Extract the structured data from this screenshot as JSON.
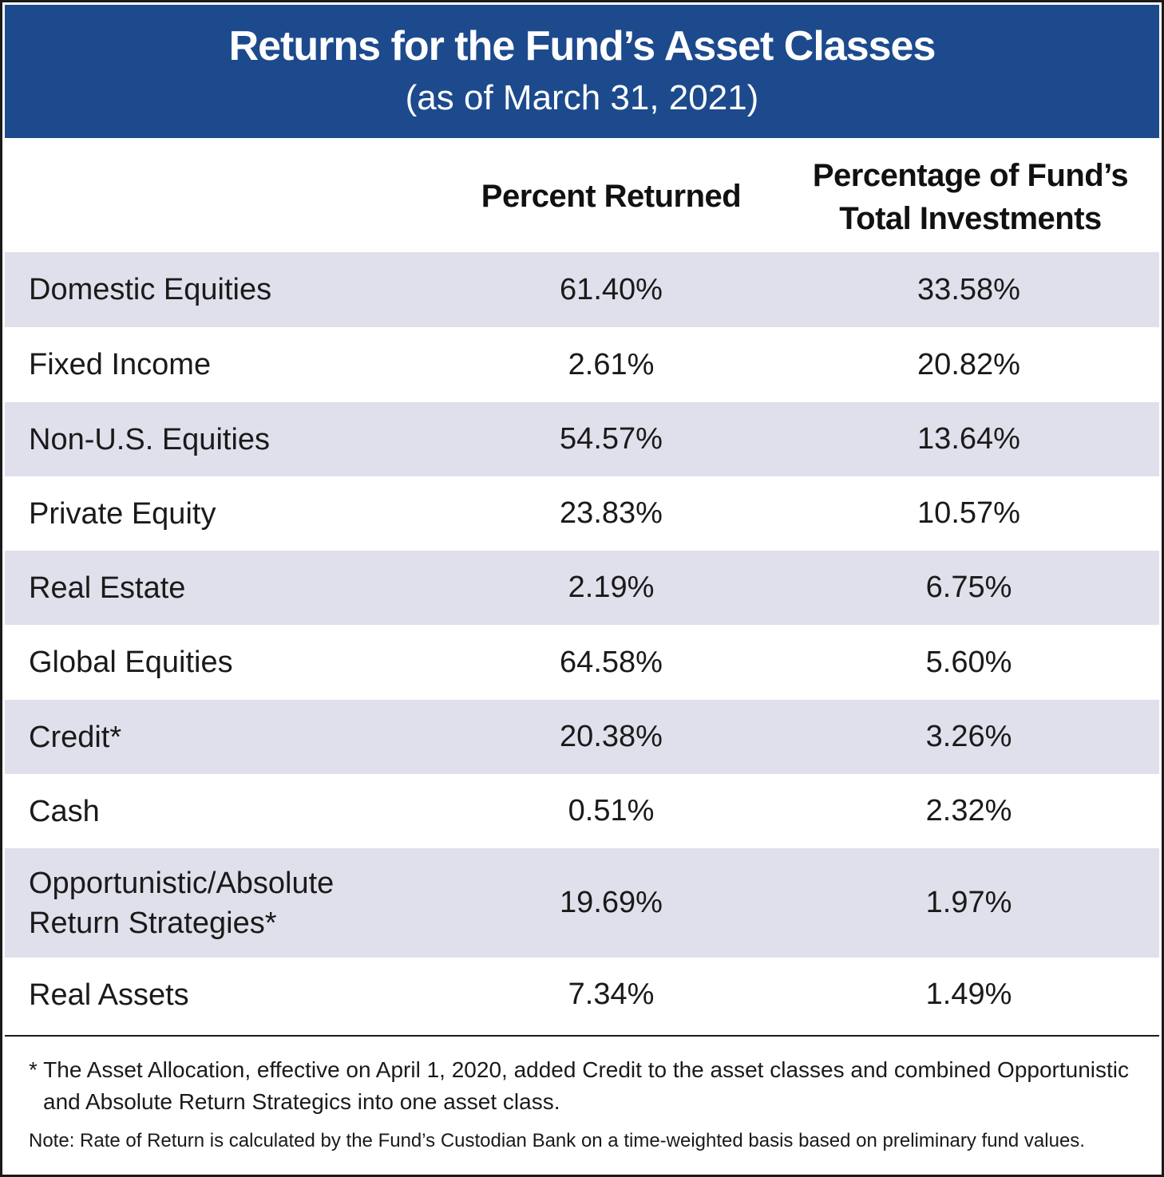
{
  "header": {
    "title": "Returns for the Fund’s Asset Classes",
    "subtitle": "(as of March 31, 2021)"
  },
  "columns": {
    "returned": "Percent Returned",
    "percentage_line1": "Percentage of Fund’s",
    "percentage_line2": "Total Investments"
  },
  "rows": [
    {
      "name": "Domestic Equities",
      "returned": "61.40%",
      "percentage": "33.58%"
    },
    {
      "name": "Fixed Income",
      "returned": "2.61%",
      "percentage": "20.82%"
    },
    {
      "name": "Non-U.S. Equities",
      "returned": "54.57%",
      "percentage": "13.64%"
    },
    {
      "name": "Private Equity",
      "returned": "23.83%",
      "percentage": "10.57%"
    },
    {
      "name": "Real Estate",
      "returned": "2.19%",
      "percentage": "6.75%"
    },
    {
      "name": "Global Equities",
      "returned": "64.58%",
      "percentage": "5.60%"
    },
    {
      "name": "Credit*",
      "returned": "20.38%",
      "percentage": "3.26%"
    },
    {
      "name": "Cash",
      "returned": "0.51%",
      "percentage": "2.32%"
    },
    {
      "name": "Opportunistic/Absolute Return Strategies*",
      "returned": "19.69%",
      "percentage": "1.97%"
    },
    {
      "name": "Real Assets",
      "returned": "7.34%",
      "percentage": "1.49%"
    }
  ],
  "footnote": "* The Asset Allocation, effective on April 1, 2020, added Credit to the asset classes and combined Opportunistic and Absolute Return Strategics into one asset class.",
  "note": "Note: Rate of Return is calculated by the Fund’s Custodian Bank on a time-weighted basis based on preliminary fund values.",
  "colors": {
    "header_bg": "#1d4a8d",
    "shaded_row": "#e0e0ec"
  }
}
